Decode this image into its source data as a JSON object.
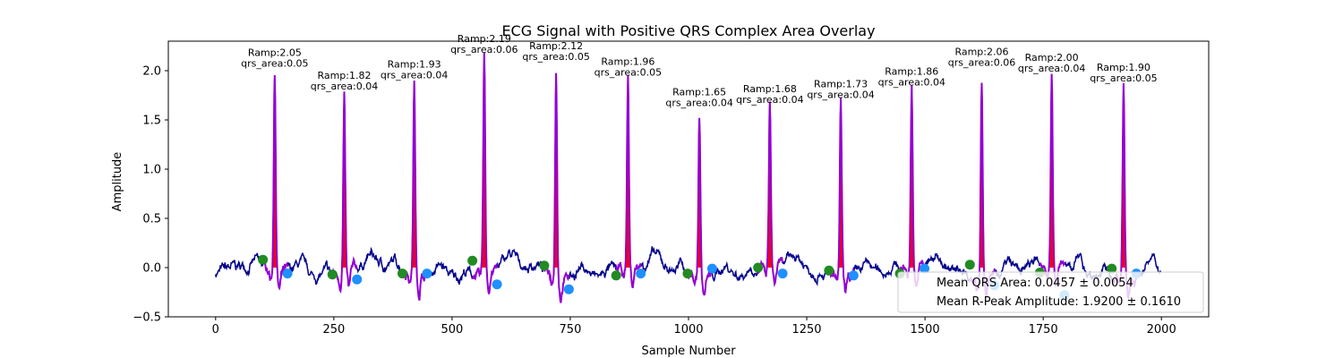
{
  "chart_data": {
    "type": "line",
    "title": "ECG Signal with Positive QRS Complex Area Overlay",
    "xlabel": "Sample Number",
    "ylabel": "Amplitude",
    "xlim": [
      -100,
      2100
    ],
    "ylim": [
      -0.5,
      2.3
    ],
    "xticks": [
      0,
      250,
      500,
      750,
      1000,
      1250,
      1500,
      1750,
      2000
    ],
    "yticks": [
      -0.5,
      0.0,
      0.5,
      1.0,
      1.5,
      2.0
    ],
    "xtick_labels": [
      "0",
      "250",
      "500",
      "750",
      "1000",
      "1250",
      "1500",
      "1750",
      "2000"
    ],
    "ytick_labels": [
      "−0.5",
      "0.0",
      "0.5",
      "1.0",
      "1.5",
      "2.0"
    ],
    "colors": {
      "signal": "#00008b",
      "qrs_segment": "#9400d3",
      "qrs_fill": "#ff0000",
      "onset_marker": "#228b22",
      "offset_marker": "#1e90ff"
    },
    "r_peaks": [
      {
        "x": 125,
        "amp": 2.05,
        "ramp_label": "Ramp:2.05",
        "area_label": "qrs_area:0.05"
      },
      {
        "x": 272,
        "amp": 1.82,
        "ramp_label": "Ramp:1.82",
        "area_label": "qrs_area:0.04"
      },
      {
        "x": 420,
        "amp": 1.93,
        "ramp_label": "Ramp:1.93",
        "area_label": "qrs_area:0.04"
      },
      {
        "x": 568,
        "amp": 2.19,
        "ramp_label": "Ramp:2.19",
        "area_label": "qrs_area:0.06"
      },
      {
        "x": 720,
        "amp": 2.12,
        "ramp_label": "Ramp:2.12",
        "area_label": "qrs_area:0.05"
      },
      {
        "x": 872,
        "amp": 1.96,
        "ramp_label": "Ramp:1.96",
        "area_label": "qrs_area:0.05"
      },
      {
        "x": 1023,
        "amp": 1.65,
        "ramp_label": "Ramp:1.65",
        "area_label": "qrs_area:0.04"
      },
      {
        "x": 1172,
        "amp": 1.68,
        "ramp_label": "Ramp:1.68",
        "area_label": "qrs_area:0.04"
      },
      {
        "x": 1322,
        "amp": 1.73,
        "ramp_label": "Ramp:1.73",
        "area_label": "qrs_area:0.04"
      },
      {
        "x": 1472,
        "amp": 1.86,
        "ramp_label": "Ramp:1.86",
        "area_label": "qrs_area:0.04"
      },
      {
        "x": 1620,
        "amp": 2.06,
        "ramp_label": "Ramp:2.06",
        "area_label": "qrs_area:0.06"
      },
      {
        "x": 1768,
        "amp": 2.0,
        "ramp_label": "Ramp:2.00",
        "area_label": "qrs_area:0.04"
      },
      {
        "x": 1920,
        "amp": 1.9,
        "ramp_label": "Ramp:1.90",
        "area_label": "qrs_area:0.05"
      }
    ],
    "onset_points": [
      {
        "x": 100,
        "y": 0.08
      },
      {
        "x": 247,
        "y": -0.07
      },
      {
        "x": 395,
        "y": -0.06
      },
      {
        "x": 543,
        "y": 0.07
      },
      {
        "x": 695,
        "y": 0.02
      },
      {
        "x": 847,
        "y": -0.08
      },
      {
        "x": 998,
        "y": -0.06
      },
      {
        "x": 1147,
        "y": 0.0
      },
      {
        "x": 1297,
        "y": -0.03
      },
      {
        "x": 1447,
        "y": -0.06
      },
      {
        "x": 1595,
        "y": 0.03
      },
      {
        "x": 1743,
        "y": -0.05
      },
      {
        "x": 1895,
        "y": -0.01
      }
    ],
    "offset_points": [
      {
        "x": 152,
        "y": -0.06
      },
      {
        "x": 299,
        "y": -0.12
      },
      {
        "x": 447,
        "y": -0.06
      },
      {
        "x": 595,
        "y": -0.17
      },
      {
        "x": 747,
        "y": -0.22
      },
      {
        "x": 899,
        "y": -0.06
      },
      {
        "x": 1050,
        "y": -0.01
      },
      {
        "x": 1199,
        "y": -0.06
      },
      {
        "x": 1349,
        "y": -0.08
      },
      {
        "x": 1499,
        "y": -0.01
      },
      {
        "x": 1647,
        "y": -0.18
      },
      {
        "x": 1795,
        "y": -0.28
      },
      {
        "x": 1947,
        "y": -0.06
      }
    ],
    "legend": {
      "location": "lower-right",
      "entries": [
        "Mean QRS Area: 0.0457 ± 0.0054",
        "Mean R-Peak Amplitude: 1.9200 ± 0.1610"
      ]
    }
  }
}
